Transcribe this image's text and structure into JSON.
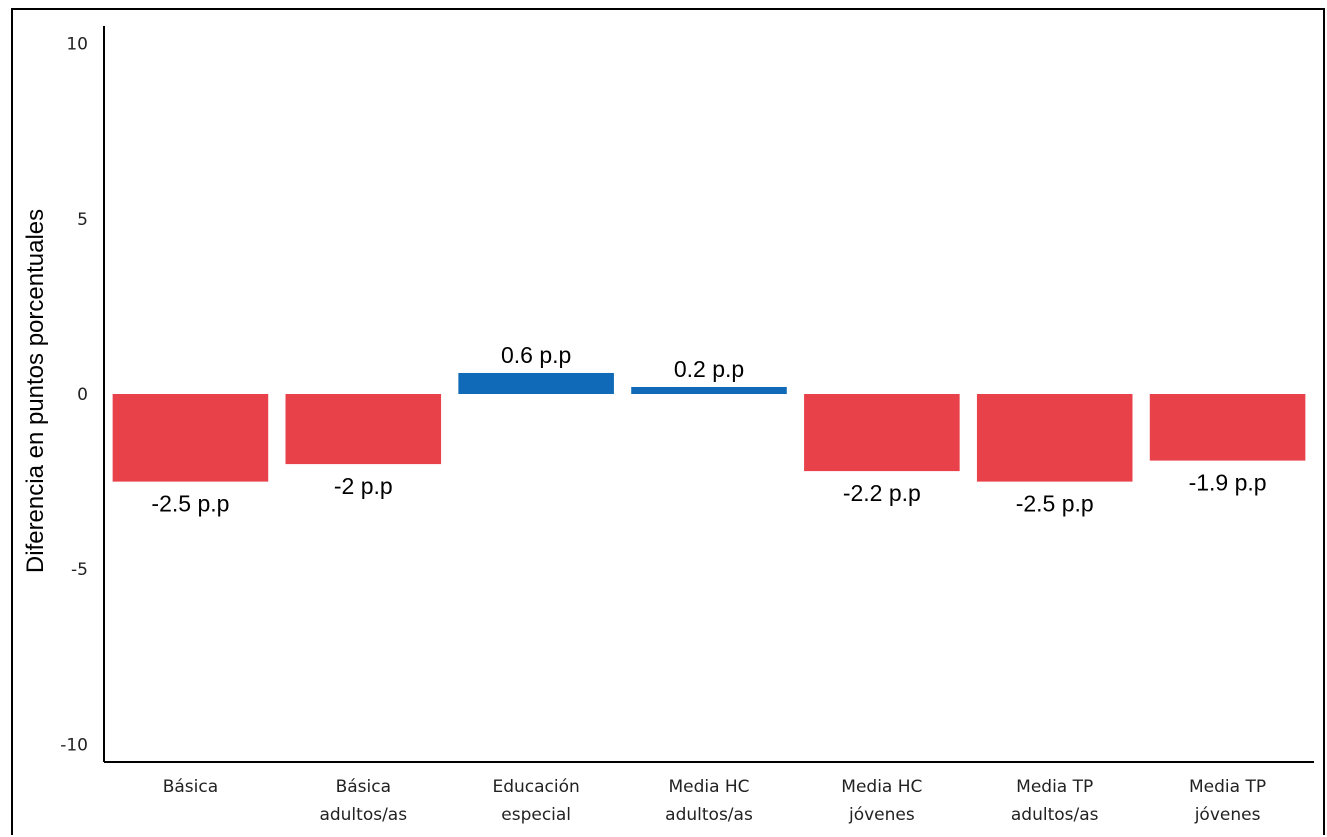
{
  "chart_data": {
    "type": "bar",
    "categories": [
      [
        "Básica"
      ],
      [
        "Básica",
        "adultos/as"
      ],
      [
        "Educación",
        "especial"
      ],
      [
        "Media HC",
        "adultos/as"
      ],
      [
        "Media HC",
        "jóvenes"
      ],
      [
        "Media TP",
        "adultos/as"
      ],
      [
        "Media TP",
        "jóvenes"
      ]
    ],
    "values": [
      -2.5,
      -2,
      0.6,
      0.2,
      -2.2,
      -2.5,
      -1.9
    ],
    "data_labels": [
      "-2.5 p.p",
      "-2 p.p",
      "0.6 p.p",
      "0.2 p.p",
      "-2.2 p.p",
      "-2.5 p.p",
      "-1.9 p.p"
    ],
    "ylabel": "Diferencia en puntos porcentuales",
    "ylim": [
      -10.5,
      10.5
    ],
    "yticks": [
      10,
      5,
      0,
      -5,
      -10
    ],
    "ytick_labels": [
      "10",
      "5",
      "0",
      "-5",
      "-10"
    ],
    "colors": {
      "negative": "#e8414a",
      "positive": "#116ab8"
    },
    "grid": false
  }
}
